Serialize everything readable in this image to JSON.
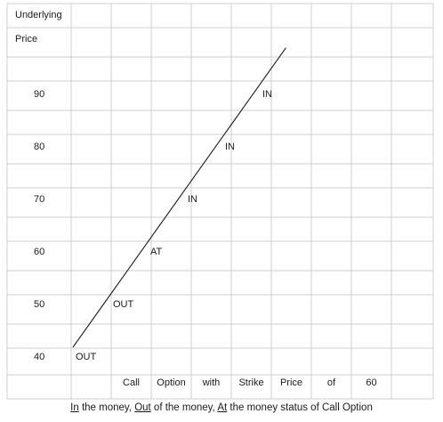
{
  "chart_data": {
    "type": "line",
    "y_axis_title": [
      "Underlying",
      "Price"
    ],
    "y_ticks": [
      90,
      80,
      70,
      60,
      50,
      40
    ],
    "x_label_words": [
      "Call",
      "Option",
      "with",
      "Strike",
      "Price",
      "of",
      "60"
    ],
    "line": {
      "from_y": 40,
      "to_y": 97
    },
    "annotations": [
      {
        "text": "OUT",
        "price": 40
      },
      {
        "text": "OUT",
        "price": 50
      },
      {
        "text": "AT",
        "price": 60
      },
      {
        "text": "IN",
        "price": 70
      },
      {
        "text": "IN",
        "price": 80
      },
      {
        "text": "IN",
        "price": 90
      }
    ],
    "grid": true
  },
  "caption": {
    "parts": [
      {
        "u": "In",
        "t": " the money, "
      },
      {
        "u": "Out",
        "t": " of the money, "
      },
      {
        "u": "At",
        "t": " the money status of Call Option"
      }
    ]
  }
}
